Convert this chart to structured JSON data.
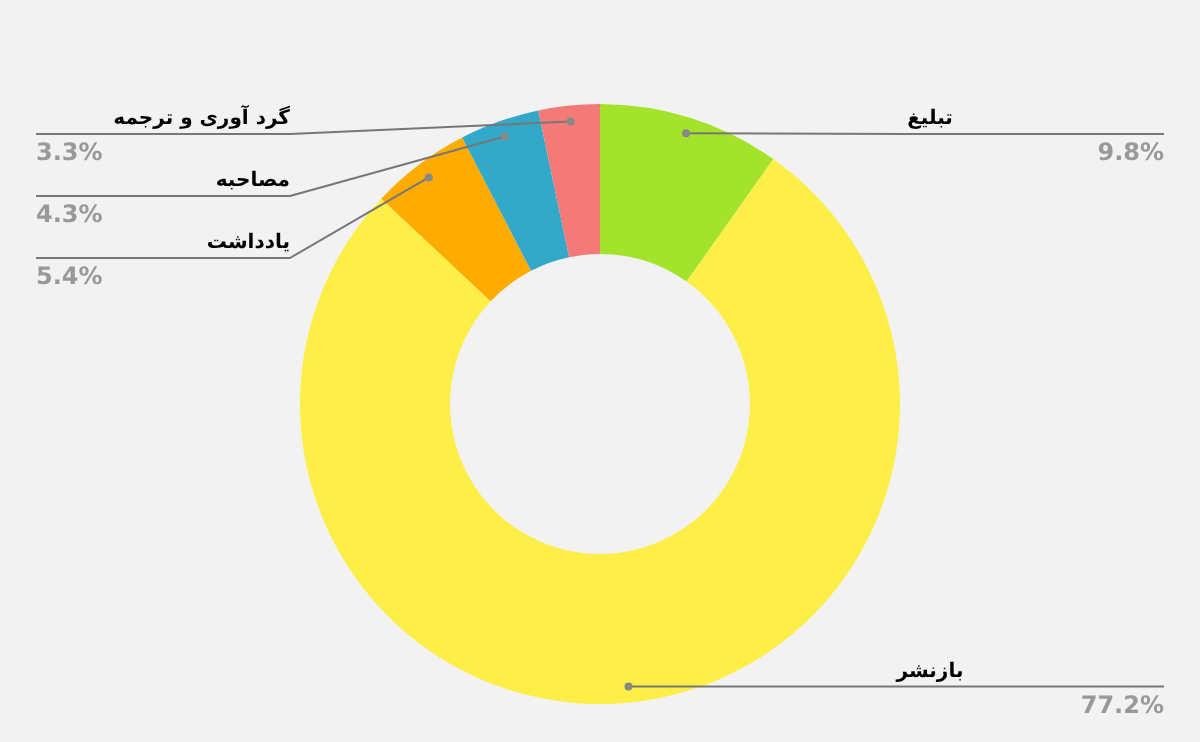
{
  "chart_data": {
    "type": "donut",
    "categories": [
      "تبلیغ",
      "بازنشر",
      "یادداشت",
      "مصاحبه",
      "گرد آوری و ترجمه"
    ],
    "values": [
      9.8,
      77.2,
      5.4,
      4.3,
      3.3
    ],
    "colors": [
      "#a3e32b",
      "#fdef47",
      "#ffab00",
      "#33a8c8",
      "#f47a78"
    ],
    "value_labels": [
      "9.8%",
      "77.2%",
      "5.4%",
      "4.3%",
      "3.3%"
    ]
  }
}
